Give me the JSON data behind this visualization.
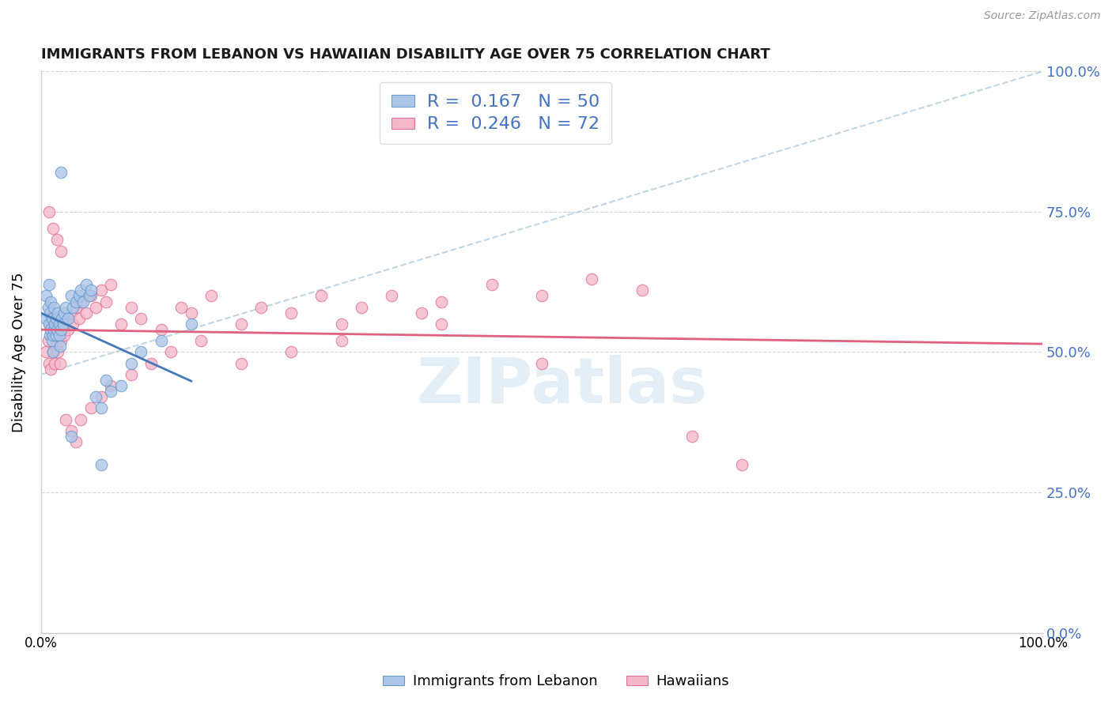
{
  "title": "IMMIGRANTS FROM LEBANON VS HAWAIIAN DISABILITY AGE OVER 75 CORRELATION CHART",
  "source": "Source: ZipAtlas.com",
  "ylabel": "Disability Age Over 75",
  "xlim": [
    0,
    1
  ],
  "ylim": [
    0,
    1
  ],
  "color_blue": "#adc6e8",
  "color_pink": "#f5b8cb",
  "edge_blue": "#6699cc",
  "edge_pink": "#e07090",
  "line_blue_color": "#4477bb",
  "line_pink_color": "#e06080",
  "diag_color": "#b0cce0",
  "r1": 0.167,
  "n1": 50,
  "r2": 0.246,
  "n2": 72,
  "legend_text_color": "#4472c4",
  "right_tick_color": "#4472c4",
  "watermark": "ZIPatlas",
  "blue_x": [
    0.005,
    0.005,
    0.007,
    0.008,
    0.008,
    0.009,
    0.009,
    0.01,
    0.01,
    0.011,
    0.011,
    0.012,
    0.012,
    0.013,
    0.013,
    0.014,
    0.015,
    0.015,
    0.016,
    0.017,
    0.018,
    0.018,
    0.019,
    0.02,
    0.021,
    0.022,
    0.023,
    0.025,
    0.027,
    0.03,
    0.032,
    0.035,
    0.038,
    0.04,
    0.042,
    0.045,
    0.048,
    0.05,
    0.055,
    0.06,
    0.065,
    0.07,
    0.08,
    0.09,
    0.1,
    0.12,
    0.15,
    0.02,
    0.03,
    0.06
  ],
  "blue_y": [
    0.56,
    0.6,
    0.58,
    0.55,
    0.62,
    0.53,
    0.57,
    0.54,
    0.59,
    0.52,
    0.56,
    0.5,
    0.53,
    0.54,
    0.58,
    0.55,
    0.53,
    0.56,
    0.54,
    0.57,
    0.55,
    0.53,
    0.51,
    0.54,
    0.56,
    0.55,
    0.57,
    0.58,
    0.56,
    0.6,
    0.58,
    0.59,
    0.6,
    0.61,
    0.59,
    0.62,
    0.6,
    0.61,
    0.42,
    0.4,
    0.45,
    0.43,
    0.44,
    0.48,
    0.5,
    0.52,
    0.55,
    0.82,
    0.35,
    0.3
  ],
  "pink_x": [
    0.005,
    0.007,
    0.008,
    0.009,
    0.01,
    0.011,
    0.012,
    0.013,
    0.014,
    0.015,
    0.016,
    0.017,
    0.018,
    0.019,
    0.02,
    0.022,
    0.023,
    0.025,
    0.027,
    0.03,
    0.032,
    0.035,
    0.038,
    0.04,
    0.045,
    0.05,
    0.055,
    0.06,
    0.065,
    0.07,
    0.08,
    0.09,
    0.1,
    0.12,
    0.14,
    0.15,
    0.17,
    0.2,
    0.22,
    0.25,
    0.28,
    0.3,
    0.32,
    0.35,
    0.38,
    0.4,
    0.45,
    0.5,
    0.55,
    0.6,
    0.65,
    0.7,
    0.008,
    0.012,
    0.016,
    0.02,
    0.025,
    0.03,
    0.035,
    0.04,
    0.05,
    0.06,
    0.07,
    0.09,
    0.11,
    0.13,
    0.16,
    0.2,
    0.25,
    0.3,
    0.4,
    0.5
  ],
  "pink_y": [
    0.5,
    0.52,
    0.48,
    0.55,
    0.47,
    0.53,
    0.5,
    0.56,
    0.48,
    0.51,
    0.54,
    0.5,
    0.53,
    0.48,
    0.52,
    0.55,
    0.53,
    0.56,
    0.54,
    0.57,
    0.55,
    0.58,
    0.56,
    0.59,
    0.57,
    0.6,
    0.58,
    0.61,
    0.59,
    0.62,
    0.55,
    0.58,
    0.56,
    0.54,
    0.58,
    0.57,
    0.6,
    0.55,
    0.58,
    0.57,
    0.6,
    0.55,
    0.58,
    0.6,
    0.57,
    0.59,
    0.62,
    0.6,
    0.63,
    0.61,
    0.35,
    0.3,
    0.75,
    0.72,
    0.7,
    0.68,
    0.38,
    0.36,
    0.34,
    0.38,
    0.4,
    0.42,
    0.44,
    0.46,
    0.48,
    0.5,
    0.52,
    0.48,
    0.5,
    0.52,
    0.55,
    0.48
  ]
}
